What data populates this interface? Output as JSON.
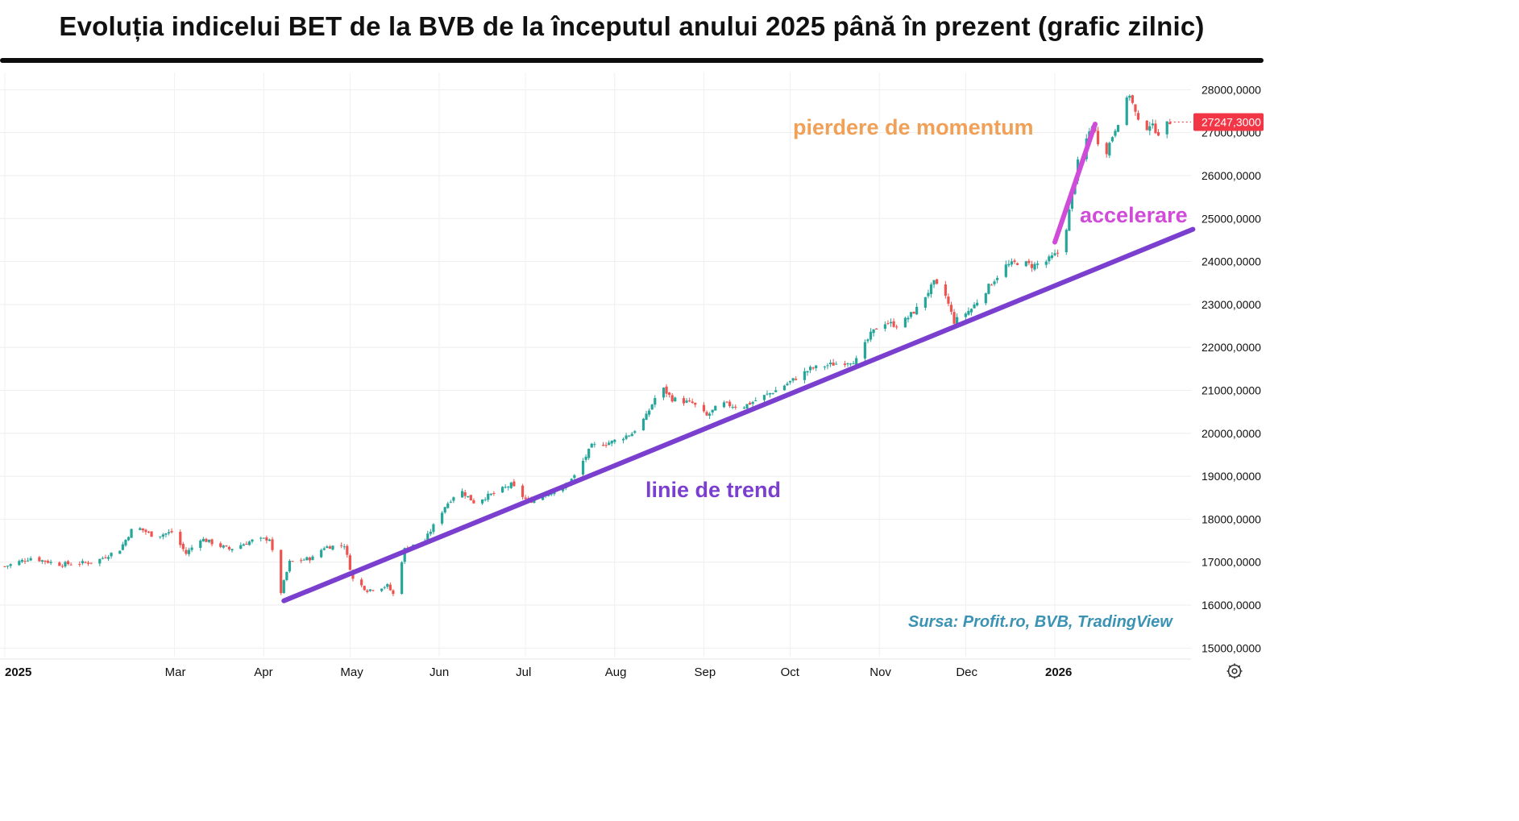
{
  "title": "Evoluția indicelui BET de la BVB de la începutul anului 2025 până în prezent (grafic zilnic)",
  "annotations": {
    "momentum": "pierdere de momentum",
    "acceleration": "accelerare",
    "trendline": "linie de trend",
    "source": "Sursa: Profit.ro, BVB, TradingView"
  },
  "colors": {
    "up": "#26a69a",
    "down": "#ef5350",
    "trendline": "#7b3fd0",
    "acceleration": "#d04cd8",
    "momentum_text": "#f0a057",
    "source_text": "#3a93b3",
    "price_label": "#f23645"
  },
  "settings_icon": "gear-icon",
  "chart_data": {
    "type": "candlestick",
    "title": "Evoluția indicelui BET de la BVB de la începutul anului 2025 până în prezent (grafic zilnic)",
    "ylim": [
      14800,
      28400
    ],
    "y_ticks": [
      "15000,0000",
      "16000,0000",
      "17000,0000",
      "18000,0000",
      "19000,0000",
      "20000,0000",
      "21000,0000",
      "22000,0000",
      "23000,0000",
      "24000,0000",
      "25000,0000",
      "26000,0000",
      "27000,0000",
      "28000,0000"
    ],
    "y_tick_values": [
      15000,
      16000,
      17000,
      18000,
      19000,
      20000,
      21000,
      22000,
      23000,
      24000,
      25000,
      26000,
      27000,
      28000
    ],
    "x_ticks": [
      "2025",
      "Mar",
      "Apr",
      "May",
      "Jun",
      "Jul",
      "Aug",
      "Sep",
      "Oct",
      "Nov",
      "Dec",
      "2026"
    ],
    "x_tick_dates": [
      "2025-01-01",
      "2025-03-01",
      "2025-04-01",
      "2025-05-01",
      "2025-06-01",
      "2025-07-01",
      "2025-08-01",
      "2025-09-01",
      "2025-10-01",
      "2025-11-01",
      "2025-12-01",
      "2026-01-01"
    ],
    "x_tick_bold": [
      true,
      false,
      false,
      false,
      false,
      false,
      false,
      false,
      false,
      false,
      false,
      true
    ],
    "last_price": 27247.3,
    "last_price_label": "27247,3000",
    "grid": true,
    "close_path": [
      [
        "2025-01-01",
        16900
      ],
      [
        "2025-01-10",
        17100
      ],
      [
        "2025-01-20",
        16950
      ],
      [
        "2025-02-01",
        17000
      ],
      [
        "2025-02-10",
        17300
      ],
      [
        "2025-02-15",
        17850
      ],
      [
        "2025-02-22",
        17600
      ],
      [
        "2025-02-28",
        17700
      ],
      [
        "2025-03-05",
        17200
      ],
      [
        "2025-03-10",
        17550
      ],
      [
        "2025-03-20",
        17300
      ],
      [
        "2025-03-28",
        17500
      ],
      [
        "2025-04-03",
        17550
      ],
      [
        "2025-04-07",
        16300
      ],
      [
        "2025-04-10",
        17000
      ],
      [
        "2025-04-18",
        17100
      ],
      [
        "2025-04-22",
        17350
      ],
      [
        "2025-04-29",
        17400
      ],
      [
        "2025-05-02",
        16600
      ],
      [
        "2025-05-07",
        16350
      ],
      [
        "2025-05-14",
        16450
      ],
      [
        "2025-05-16",
        16250
      ],
      [
        "2025-05-20",
        17300
      ],
      [
        "2025-05-27",
        17500
      ],
      [
        "2025-06-03",
        18300
      ],
      [
        "2025-06-08",
        18700
      ],
      [
        "2025-06-13",
        18400
      ],
      [
        "2025-06-20",
        18600
      ],
      [
        "2025-06-26",
        18800
      ],
      [
        "2025-07-02",
        18400
      ],
      [
        "2025-07-08",
        18600
      ],
      [
        "2025-07-14",
        18700
      ],
      [
        "2025-07-18",
        19000
      ],
      [
        "2025-07-24",
        19700
      ],
      [
        "2025-07-31",
        19800
      ],
      [
        "2025-08-07",
        20000
      ],
      [
        "2025-08-12",
        20400
      ],
      [
        "2025-08-17",
        21100
      ],
      [
        "2025-08-21",
        20800
      ],
      [
        "2025-08-28",
        20700
      ],
      [
        "2025-09-02",
        20400
      ],
      [
        "2025-09-07",
        20700
      ],
      [
        "2025-09-14",
        20600
      ],
      [
        "2025-09-20",
        20800
      ],
      [
        "2025-09-26",
        21000
      ],
      [
        "2025-10-01",
        21200
      ],
      [
        "2025-10-08",
        21500
      ],
      [
        "2025-10-15",
        21600
      ],
      [
        "2025-10-24",
        21700
      ],
      [
        "2025-10-29",
        22300
      ],
      [
        "2025-11-02",
        22600
      ],
      [
        "2025-11-08",
        22500
      ],
      [
        "2025-11-14",
        22900
      ],
      [
        "2025-11-20",
        23500
      ],
      [
        "2025-11-24",
        23200
      ],
      [
        "2025-11-27",
        22600
      ],
      [
        "2025-12-03",
        22900
      ],
      [
        "2025-12-10",
        23500
      ],
      [
        "2025-12-15",
        23900
      ],
      [
        "2025-12-20",
        24000
      ],
      [
        "2025-12-24",
        23900
      ],
      [
        "2025-12-29",
        24000
      ],
      [
        "2026-01-02",
        24200
      ],
      [
        "2026-01-05",
        24800
      ],
      [
        "2026-01-09",
        26300
      ],
      [
        "2026-01-14",
        27200
      ],
      [
        "2026-01-18",
        26400
      ],
      [
        "2026-01-22",
        27100
      ],
      [
        "2026-01-27",
        27900
      ],
      [
        "2026-01-31",
        27000
      ],
      [
        "2026-02-03",
        27200
      ],
      [
        "2026-02-06",
        27000
      ],
      [
        "2026-02-10",
        27250
      ]
    ],
    "lines": [
      {
        "name": "linie de trend",
        "from": [
          "2025-04-08",
          16100
        ],
        "to": [
          "2026-02-18",
          24750
        ]
      },
      {
        "name": "accelerare",
        "from": [
          "2026-01-01",
          24450
        ],
        "to": [
          "2026-01-15",
          27200
        ]
      }
    ]
  }
}
